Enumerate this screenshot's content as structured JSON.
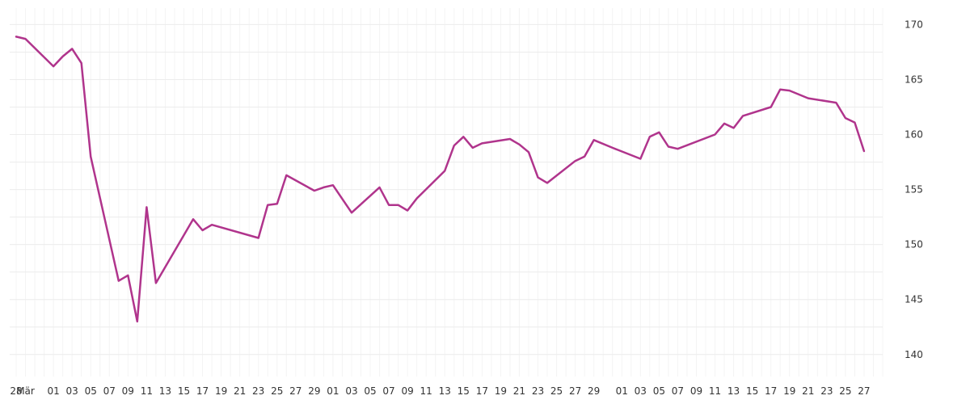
{
  "chart_data": {
    "type": "line",
    "title": "",
    "xlabel": "",
    "ylabel": "",
    "y_axis_position": "right",
    "ylim": [
      138,
      171.5
    ],
    "y_ticks": [
      140,
      145,
      150,
      155,
      160,
      165,
      170
    ],
    "grid": true,
    "colors": {
      "series": "#b0348c",
      "grid": "#ececec",
      "text": "#333333"
    },
    "x_ticks": [
      {
        "i": 0,
        "label": "28"
      },
      {
        "i": 1,
        "label": "Mär"
      },
      {
        "i": 4,
        "label": "01"
      },
      {
        "i": 6,
        "label": "03"
      },
      {
        "i": 8,
        "label": "05"
      },
      {
        "i": 10,
        "label": "07"
      },
      {
        "i": 12,
        "label": "09"
      },
      {
        "i": 14,
        "label": "11"
      },
      {
        "i": 16,
        "label": "13"
      },
      {
        "i": 18,
        "label": "15"
      },
      {
        "i": 20,
        "label": "17"
      },
      {
        "i": 22,
        "label": "19"
      },
      {
        "i": 24,
        "label": "21"
      },
      {
        "i": 26,
        "label": "23"
      },
      {
        "i": 28,
        "label": "25"
      },
      {
        "i": 30,
        "label": "27"
      },
      {
        "i": 32,
        "label": "29"
      },
      {
        "i": 34,
        "label": "01"
      },
      {
        "i": 36,
        "label": "03"
      },
      {
        "i": 38,
        "label": "05"
      },
      {
        "i": 40,
        "label": "07"
      },
      {
        "i": 42,
        "label": "09"
      },
      {
        "i": 44,
        "label": "11"
      },
      {
        "i": 46,
        "label": "13"
      },
      {
        "i": 48,
        "label": "15"
      },
      {
        "i": 50,
        "label": "17"
      },
      {
        "i": 52,
        "label": "19"
      },
      {
        "i": 54,
        "label": "21"
      },
      {
        "i": 56,
        "label": "23"
      },
      {
        "i": 58,
        "label": "25"
      },
      {
        "i": 60,
        "label": "27"
      },
      {
        "i": 62,
        "label": "29"
      },
      {
        "i": 65,
        "label": "01"
      },
      {
        "i": 67,
        "label": "03"
      },
      {
        "i": 69,
        "label": "05"
      },
      {
        "i": 71,
        "label": "07"
      },
      {
        "i": 73,
        "label": "09"
      },
      {
        "i": 75,
        "label": "11"
      },
      {
        "i": 77,
        "label": "13"
      },
      {
        "i": 79,
        "label": "15"
      },
      {
        "i": 81,
        "label": "17"
      },
      {
        "i": 83,
        "label": "19"
      },
      {
        "i": 85,
        "label": "21"
      },
      {
        "i": 87,
        "label": "23"
      },
      {
        "i": 89,
        "label": "25"
      },
      {
        "i": 91,
        "label": "27"
      }
    ],
    "x_index_max": 93,
    "series": [
      {
        "points": [
          [
            0,
            168.9
          ],
          [
            1,
            168.7
          ],
          [
            4,
            166.2
          ],
          [
            5,
            167.1
          ],
          [
            6,
            167.8
          ],
          [
            7,
            166.5
          ],
          [
            8,
            158.0
          ],
          [
            11,
            146.7
          ],
          [
            12,
            147.2
          ],
          [
            13,
            143.0
          ],
          [
            14,
            153.4
          ],
          [
            15,
            146.5
          ],
          [
            19,
            152.3
          ],
          [
            20,
            151.3
          ],
          [
            21,
            151.8
          ],
          [
            26,
            150.6
          ],
          [
            27,
            153.6
          ],
          [
            28,
            153.7
          ],
          [
            29,
            156.3
          ],
          [
            32,
            154.9
          ],
          [
            33,
            155.2
          ],
          [
            34,
            155.4
          ],
          [
            36,
            152.9
          ],
          [
            39,
            155.2
          ],
          [
            40,
            153.6
          ],
          [
            41,
            153.6
          ],
          [
            42,
            153.1
          ],
          [
            43,
            154.2
          ],
          [
            46,
            156.7
          ],
          [
            47,
            159.0
          ],
          [
            48,
            159.8
          ],
          [
            49,
            158.8
          ],
          [
            50,
            159.2
          ],
          [
            53,
            159.6
          ],
          [
            54,
            159.1
          ],
          [
            55,
            158.4
          ],
          [
            56,
            156.1
          ],
          [
            57,
            155.6
          ],
          [
            60,
            157.6
          ],
          [
            61,
            158.0
          ],
          [
            62,
            159.5
          ],
          [
            64,
            158.8
          ],
          [
            67,
            157.8
          ],
          [
            68,
            159.8
          ],
          [
            69,
            160.2
          ],
          [
            70,
            158.9
          ],
          [
            71,
            158.7
          ],
          [
            75,
            160.0
          ],
          [
            76,
            161.0
          ],
          [
            77,
            160.6
          ],
          [
            78,
            161.7
          ],
          [
            81,
            162.5
          ],
          [
            82,
            164.1
          ],
          [
            83,
            164.0
          ],
          [
            85,
            163.3
          ],
          [
            88,
            162.9
          ],
          [
            89,
            161.5
          ],
          [
            90,
            161.1
          ],
          [
            91,
            158.5
          ]
        ]
      }
    ]
  }
}
